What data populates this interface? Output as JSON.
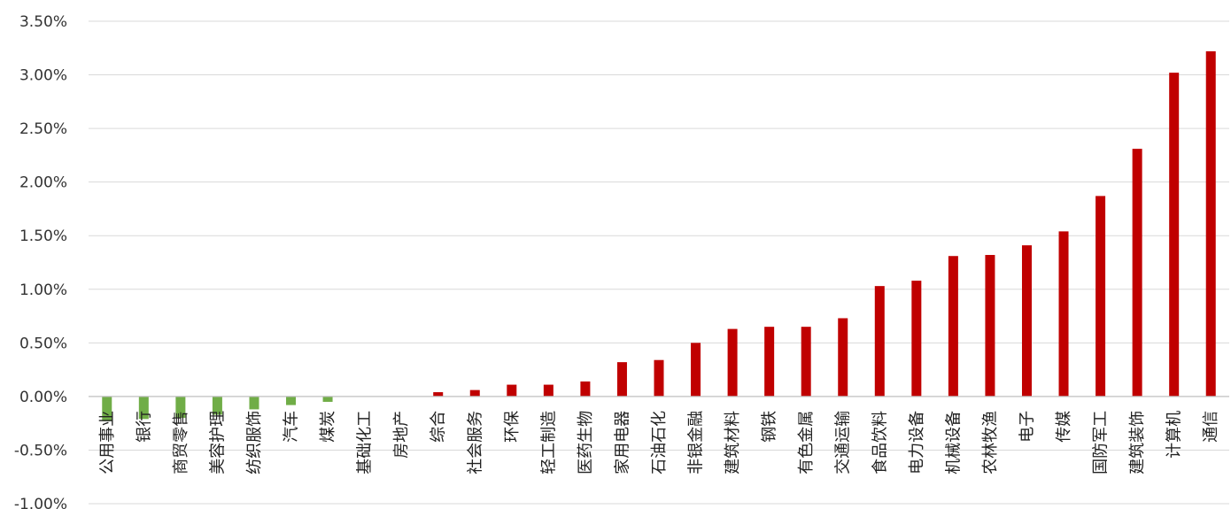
{
  "chart_data": {
    "type": "bar",
    "title": "",
    "xlabel": "",
    "ylabel": "",
    "ylim": [
      -1.0,
      3.5
    ],
    "y_tick_values": [
      3.5,
      3.0,
      2.5,
      2.0,
      1.5,
      1.0,
      0.5,
      0.0,
      -0.5,
      -1.0
    ],
    "y_tick_labels": [
      "3.50%",
      "3.00%",
      "2.50%",
      "2.00%",
      "1.50%",
      "1.00%",
      "0.50%",
      "0.00%",
      "-0.50%",
      "-1.00%"
    ],
    "grid": "horizontal",
    "legend": "none",
    "colors": {
      "positive": "#c00000",
      "negative": "#70ad47",
      "grid": "#d9d9d9",
      "axis": "#bfbfbf"
    },
    "categories": [
      "公用事业",
      "银行",
      "商贸零售",
      "美容护理",
      "纺织服饰",
      "汽车",
      "煤炭",
      "基础化工",
      "房地产",
      "综合",
      "社会服务",
      "环保",
      "轻工制造",
      "医药生物",
      "家用电器",
      "石油石化",
      "非银金融",
      "建筑材料",
      "钢铁",
      "有色金属",
      "交通运输",
      "食品饮料",
      "电力设备",
      "机械设备",
      "农林牧渔",
      "电子",
      "传媒",
      "国防军工",
      "建筑装饰",
      "计算机",
      "通信"
    ],
    "values": [
      -0.23,
      -0.21,
      -0.2,
      -0.17,
      -0.12,
      -0.08,
      -0.05,
      0.0,
      0.0,
      0.04,
      0.06,
      0.11,
      0.11,
      0.14,
      0.32,
      0.34,
      0.5,
      0.63,
      0.65,
      0.65,
      0.73,
      1.03,
      1.08,
      1.31,
      1.32,
      1.41,
      1.54,
      1.87,
      2.31,
      3.02,
      3.22
    ]
  }
}
